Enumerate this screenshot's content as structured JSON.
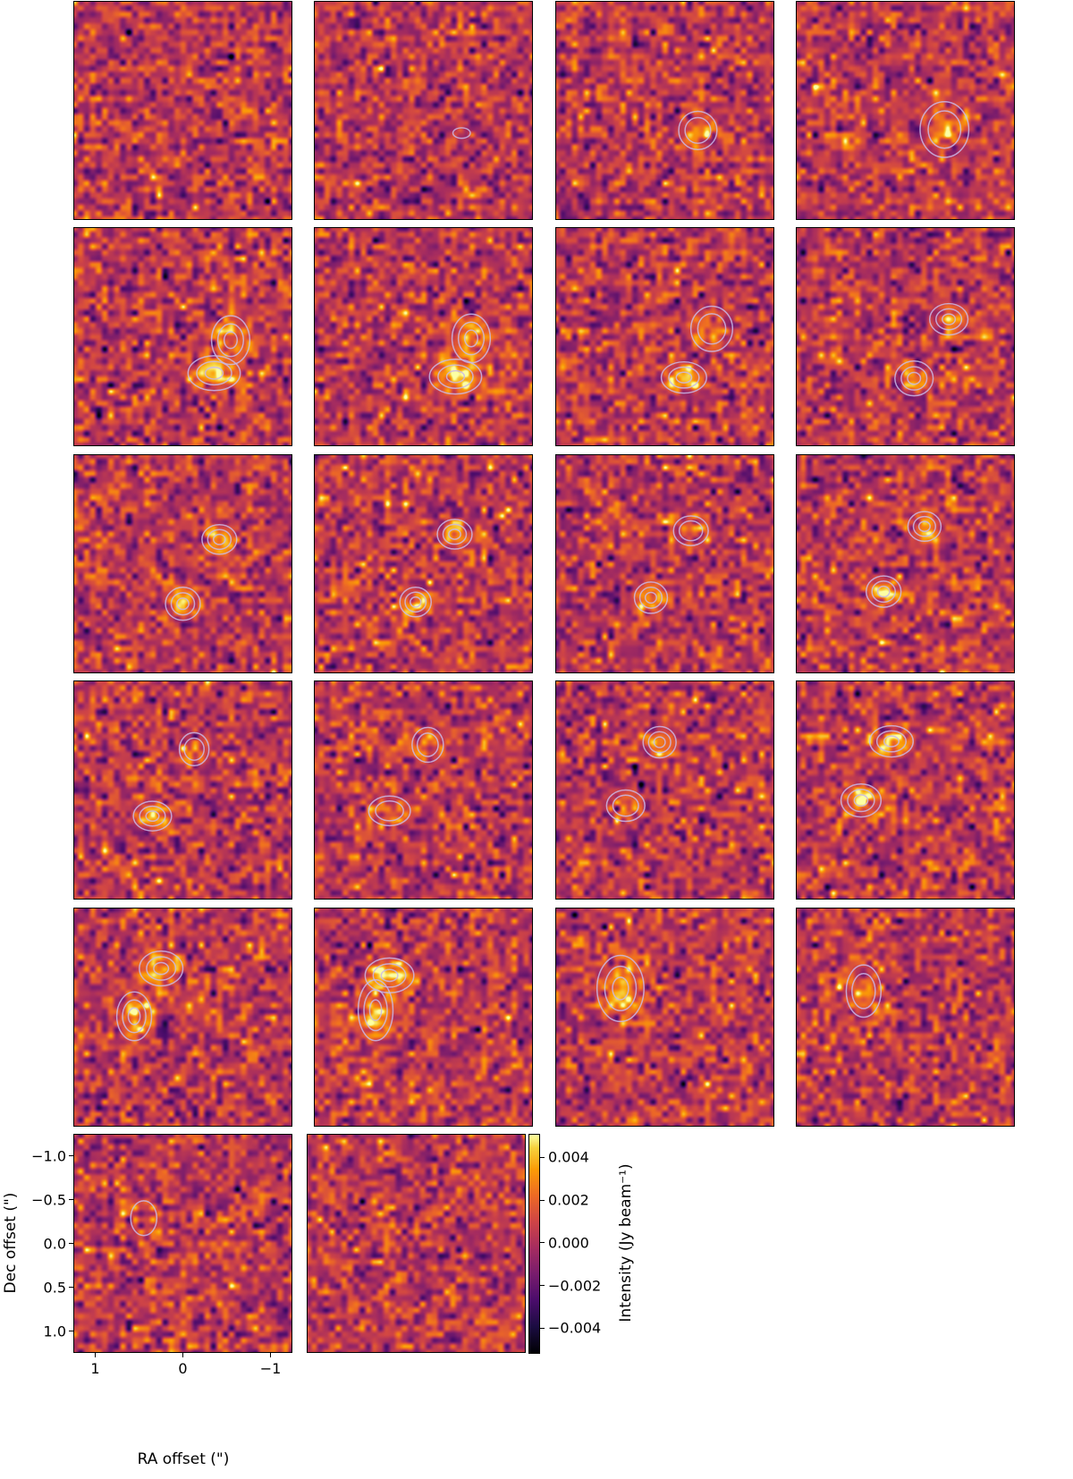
{
  "chart_data": {
    "type": "heatmap",
    "description_kind": "channel maps",
    "layout": {
      "columns": 4,
      "panel_count": 22
    },
    "xlabel": "RA offset (\")",
    "ylabel": "Dec offset (\")",
    "xlim": [
      1.25,
      -1.25
    ],
    "ylim": [
      -1.25,
      1.25
    ],
    "xticks": [
      {
        "value": 1,
        "label": "1"
      },
      {
        "value": 0,
        "label": "0"
      },
      {
        "value": -1,
        "label": "−1"
      }
    ],
    "yticks": [
      {
        "value": -1.0,
        "label": "−1.0"
      },
      {
        "value": -0.5,
        "label": "−0.5"
      },
      {
        "value": 0.0,
        "label": "0.0"
      },
      {
        "value": 0.5,
        "label": "0.5"
      },
      {
        "value": 1.0,
        "label": "1.0"
      }
    ],
    "colorbar": {
      "label": "Intensity (Jy beam⁻¹)",
      "colormap": "inferno",
      "range": [
        -0.0052,
        0.0051
      ],
      "ticks": [
        {
          "value": 0.004,
          "label": "0.004"
        },
        {
          "value": 0.002,
          "label": "0.002"
        },
        {
          "value": 0.0,
          "label": "0.000"
        },
        {
          "value": -0.002,
          "label": "−0.002"
        },
        {
          "value": -0.004,
          "label": "−0.004"
        }
      ]
    },
    "contour_color": "#c9b8e8",
    "panels": [
      {
        "sources": []
      },
      {
        "sources": [
          {
            "ra": -0.44,
            "dec": 0.26,
            "rx": 0.1,
            "ry": 0.06,
            "levels": 1
          }
        ]
      },
      {
        "sources": [
          {
            "ra": -0.38,
            "dec": 0.23,
            "rx": 0.22,
            "ry": 0.22,
            "levels": 2
          }
        ]
      },
      {
        "sources": [
          {
            "ra": -0.45,
            "dec": 0.22,
            "rx": 0.28,
            "ry": 0.32,
            "levels": 2
          }
        ]
      },
      {
        "sources": [
          {
            "ra": -0.55,
            "dec": 0.04,
            "rx": 0.22,
            "ry": 0.28,
            "levels": 3
          },
          {
            "ra": -0.36,
            "dec": 0.42,
            "rx": 0.3,
            "ry": 0.2,
            "levels": 3
          }
        ]
      },
      {
        "sources": [
          {
            "ra": -0.55,
            "dec": 0.02,
            "rx": 0.22,
            "ry": 0.28,
            "levels": 3
          },
          {
            "ra": -0.37,
            "dec": 0.46,
            "rx": 0.3,
            "ry": 0.2,
            "levels": 3
          }
        ]
      },
      {
        "sources": [
          {
            "ra": -0.54,
            "dec": -0.09,
            "rx": 0.24,
            "ry": 0.26,
            "levels": 2
          },
          {
            "ra": -0.22,
            "dec": 0.47,
            "rx": 0.26,
            "ry": 0.18,
            "levels": 3
          }
        ]
      },
      {
        "sources": [
          {
            "ra": -0.5,
            "dec": -0.2,
            "rx": 0.22,
            "ry": 0.18,
            "levels": 3
          },
          {
            "ra": -0.1,
            "dec": 0.48,
            "rx": 0.22,
            "ry": 0.2,
            "levels": 3
          }
        ]
      },
      {
        "sources": [
          {
            "ra": -0.42,
            "dec": -0.28,
            "rx": 0.2,
            "ry": 0.17,
            "levels": 3
          },
          {
            "ra": 0.0,
            "dec": 0.46,
            "rx": 0.2,
            "ry": 0.19,
            "levels": 3
          }
        ]
      },
      {
        "sources": [
          {
            "ra": -0.36,
            "dec": -0.34,
            "rx": 0.2,
            "ry": 0.17,
            "levels": 3
          },
          {
            "ra": 0.09,
            "dec": 0.44,
            "rx": 0.18,
            "ry": 0.17,
            "levels": 3
          }
        ]
      },
      {
        "sources": [
          {
            "ra": -0.3,
            "dec": -0.38,
            "rx": 0.2,
            "ry": 0.17,
            "levels": 2
          },
          {
            "ra": 0.16,
            "dec": 0.39,
            "rx": 0.19,
            "ry": 0.18,
            "levels": 3
          }
        ]
      },
      {
        "sources": [
          {
            "ra": -0.22,
            "dec": -0.43,
            "rx": 0.19,
            "ry": 0.17,
            "levels": 3
          },
          {
            "ra": 0.25,
            "dec": 0.32,
            "rx": 0.2,
            "ry": 0.18,
            "levels": 3
          }
        ]
      },
      {
        "sources": [
          {
            "ra": -0.13,
            "dec": -0.47,
            "rx": 0.17,
            "ry": 0.19,
            "levels": 2
          },
          {
            "ra": 0.35,
            "dec": 0.3,
            "rx": 0.22,
            "ry": 0.17,
            "levels": 3
          }
        ]
      },
      {
        "sources": [
          {
            "ra": -0.05,
            "dec": -0.52,
            "rx": 0.18,
            "ry": 0.2,
            "levels": 2
          },
          {
            "ra": 0.39,
            "dec": 0.24,
            "rx": 0.24,
            "ry": 0.17,
            "levels": 2
          }
        ]
      },
      {
        "sources": [
          {
            "ra": 0.06,
            "dec": -0.55,
            "rx": 0.19,
            "ry": 0.18,
            "levels": 3
          },
          {
            "ra": 0.45,
            "dec": 0.18,
            "rx": 0.22,
            "ry": 0.18,
            "levels": 2
          }
        ]
      },
      {
        "sources": [
          {
            "ra": 0.16,
            "dec": -0.56,
            "rx": 0.25,
            "ry": 0.18,
            "levels": 3
          },
          {
            "ra": 0.51,
            "dec": 0.12,
            "rx": 0.23,
            "ry": 0.19,
            "levels": 3
          }
        ]
      },
      {
        "sources": [
          {
            "ra": 0.25,
            "dec": -0.56,
            "rx": 0.25,
            "ry": 0.2,
            "levels": 3
          },
          {
            "ra": 0.56,
            "dec": -0.01,
            "rx": 0.2,
            "ry": 0.28,
            "levels": 3
          }
        ]
      },
      {
        "sources": [
          {
            "ra": 0.39,
            "dec": -0.48,
            "rx": 0.28,
            "ry": 0.2,
            "levels": 3
          },
          {
            "ra": 0.55,
            "dec": -0.08,
            "rx": 0.2,
            "ry": 0.35,
            "levels": 3
          }
        ]
      },
      {
        "sources": [
          {
            "ra": 0.51,
            "dec": -0.33,
            "rx": 0.27,
            "ry": 0.38,
            "levels": 3
          }
        ]
      },
      {
        "sources": [
          {
            "ra": 0.48,
            "dec": -0.3,
            "rx": 0.2,
            "ry": 0.3,
            "levels": 2
          }
        ]
      },
      {
        "sources": [
          {
            "ra": 0.45,
            "dec": -0.29,
            "rx": 0.15,
            "ry": 0.2,
            "levels": 1
          }
        ]
      },
      {
        "sources": []
      }
    ]
  }
}
